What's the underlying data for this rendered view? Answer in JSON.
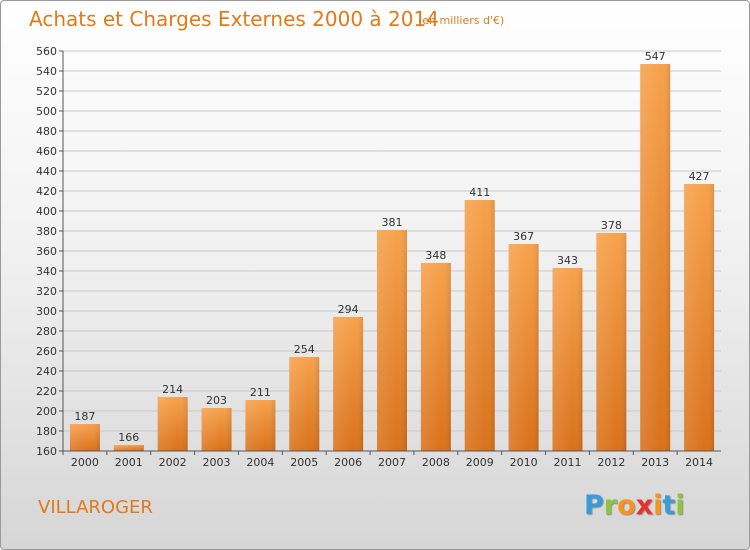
{
  "header": {
    "title": "Achats et Charges Externes 2000 à 2014",
    "subtitle": "(en milliers d'€)"
  },
  "footer": {
    "place": "VILLAROGER",
    "logo_letters": [
      "P",
      "r",
      "o",
      "x",
      "i",
      "t",
      "i"
    ],
    "logo_colors": [
      "#3a9bd9",
      "#8cc63f",
      "#f7941d",
      "#e8312f",
      "#f7941d",
      "#3a9bd9",
      "#8cc63f"
    ]
  },
  "colors": {
    "accent": "#e07a1a",
    "bar_top": "#f7a24c",
    "bar_bottom": "#d9711a",
    "grid": "#c8c8c8"
  },
  "chart_data": {
    "type": "bar",
    "title": "Achats et Charges Externes 2000 à 2014",
    "subtitle": "(en milliers d'€)",
    "categories": [
      "2000",
      "2001",
      "2002",
      "2003",
      "2004",
      "2005",
      "2006",
      "2007",
      "2008",
      "2009",
      "2010",
      "2011",
      "2012",
      "2013",
      "2014"
    ],
    "values": [
      187,
      166,
      214,
      203,
      211,
      254,
      294,
      381,
      348,
      411,
      367,
      343,
      378,
      547,
      427
    ],
    "data_labels": [
      "187",
      "166",
      "214",
      "203",
      "211",
      "254",
      "294",
      "381",
      "348",
      "411",
      "367",
      "343",
      "378",
      "547",
      "427"
    ],
    "ylim": [
      160,
      560
    ],
    "ytick_step": 20,
    "grid": true,
    "legend": "none"
  }
}
